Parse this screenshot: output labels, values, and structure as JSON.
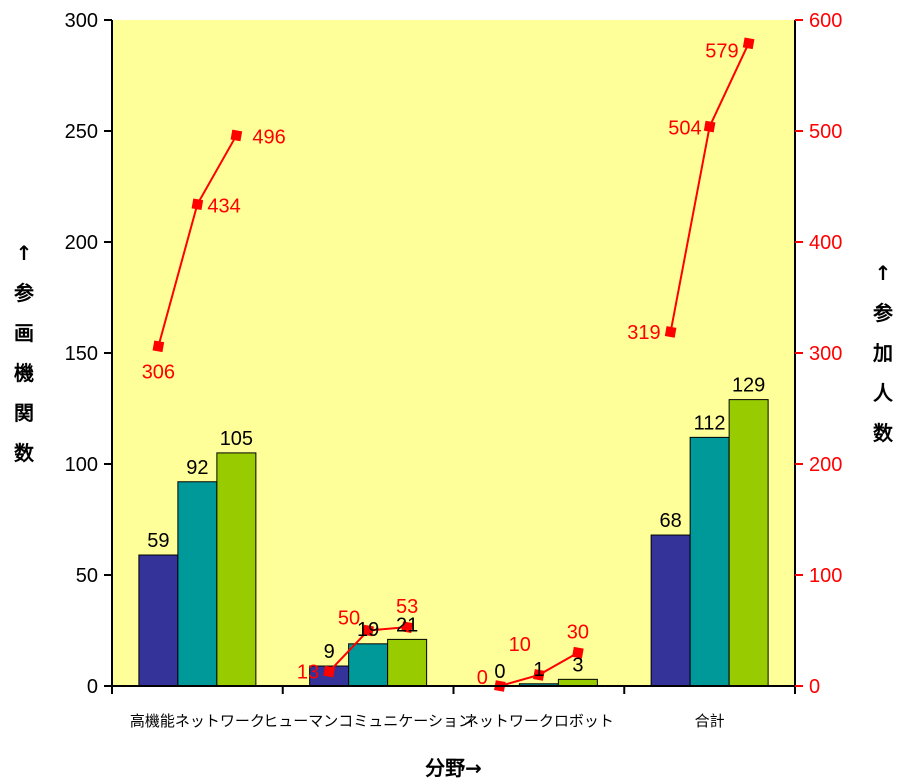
{
  "chart_data": {
    "type": "bar",
    "categories": [
      "高機能ネットワーク",
      "ヒューマンコミュニケーション",
      "ネットワークロボット",
      "合計"
    ],
    "bar_series": [
      {
        "values": [
          59,
          9,
          0,
          68
        ],
        "color": "#333399"
      },
      {
        "values": [
          92,
          19,
          1,
          112
        ],
        "color": "#009999"
      },
      {
        "values": [
          105,
          21,
          3,
          129
        ],
        "color": "#99cc00"
      }
    ],
    "line_series": {
      "values": [
        [
          306,
          434,
          496
        ],
        [
          13,
          50,
          53
        ],
        [
          0,
          10,
          30
        ],
        [
          319,
          504,
          579
        ]
      ],
      "color": "#ff0000"
    },
    "y_left": {
      "label_chars": [
        "↑",
        "参",
        "画",
        "機",
        "関",
        "数"
      ],
      "range": [
        0,
        300
      ],
      "ticks": [
        "0",
        "50",
        "100",
        "150",
        "200",
        "250",
        "300"
      ]
    },
    "y_right": {
      "label_chars": [
        "↑",
        "参",
        "加",
        "人",
        "数"
      ],
      "range": [
        0,
        600
      ],
      "ticks": [
        "0",
        "100",
        "200",
        "300",
        "400",
        "500",
        "600"
      ]
    },
    "xlabel": "分野→",
    "plot_background": "#ffff99",
    "grid": false,
    "legend": "none"
  }
}
